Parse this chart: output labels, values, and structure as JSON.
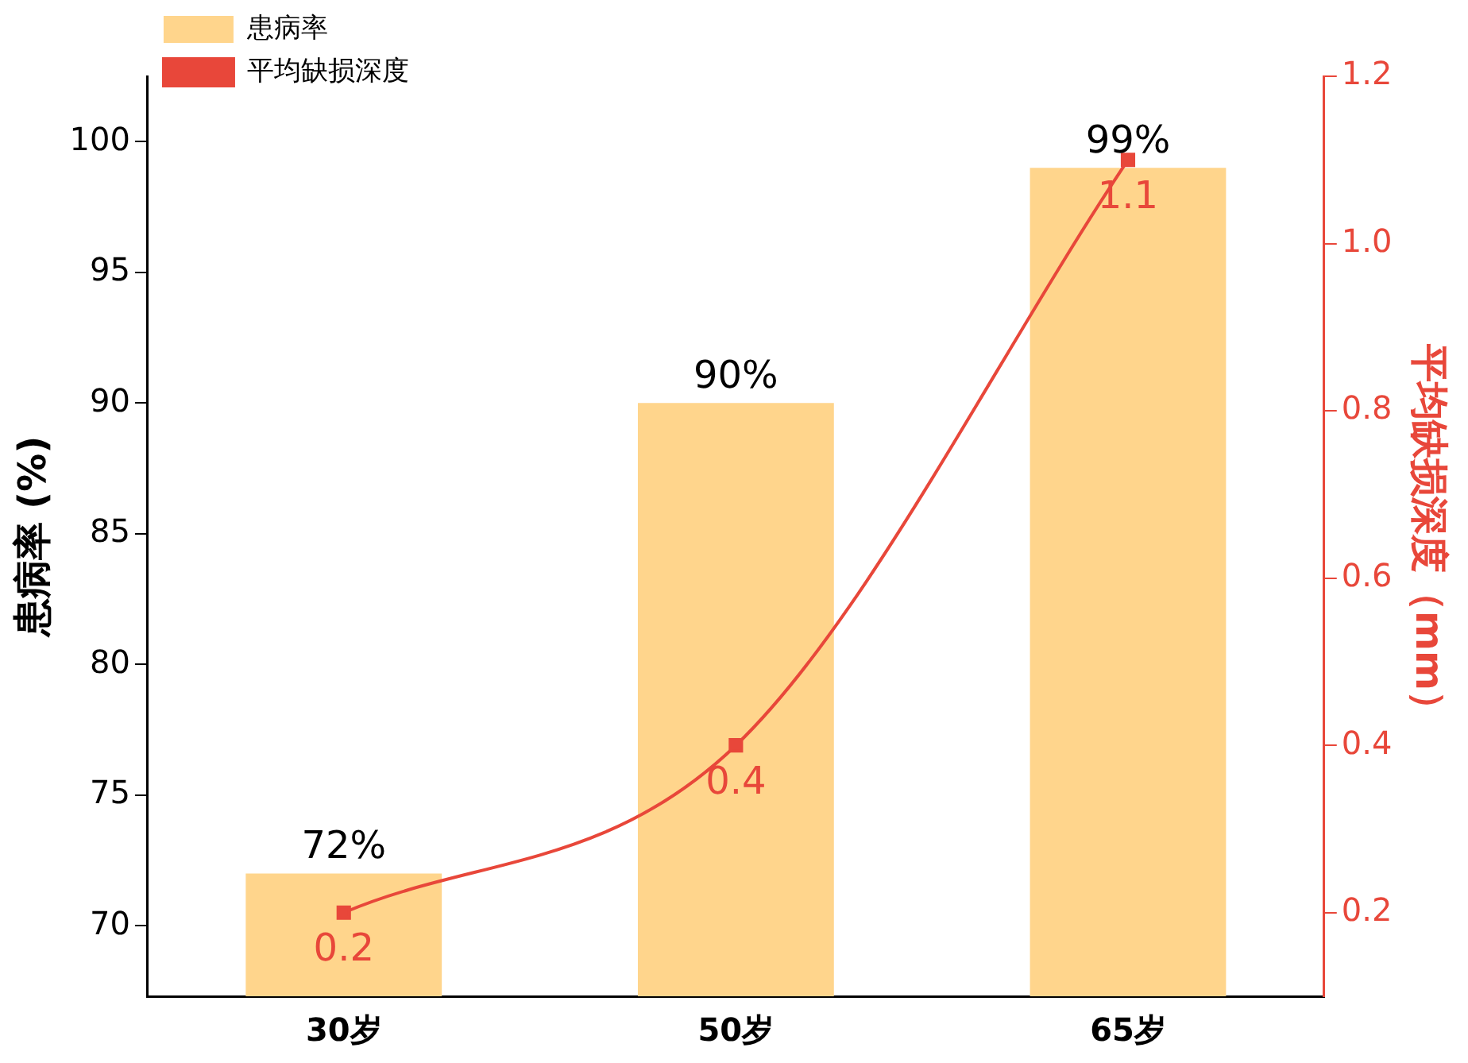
{
  "chart_data": {
    "type": "bar",
    "categories": [
      "30岁",
      "50岁",
      "65岁"
    ],
    "series": [
      {
        "name": "患病率",
        "color": "#ffd58c",
        "values": [
          72,
          90,
          99
        ],
        "value_labels": [
          "72%",
          "90%",
          "99%"
        ]
      },
      {
        "name": "平均缺损深度",
        "type": "line",
        "axis": "y2",
        "color": "#e8473a",
        "values": [
          0.2,
          0.4,
          1.1
        ],
        "value_labels": [
          "0.2",
          "0.4",
          "1.1"
        ]
      }
    ],
    "ylabel": "患病率 (%)",
    "y2label": "平均缺损深度（mm）",
    "ylim": [
      67.3,
      102.5
    ],
    "yticks": [
      70,
      75,
      80,
      85,
      90,
      95,
      100
    ],
    "y2lim": [
      0.1,
      1.2
    ],
    "y2ticks": [
      0.2,
      0.4,
      0.6,
      0.8,
      {
        "value": 1.0,
        "label": "1.0"
      },
      1.2
    ],
    "legend": "top left",
    "grid": false,
    "marker": "square",
    "line_style": "solid"
  }
}
